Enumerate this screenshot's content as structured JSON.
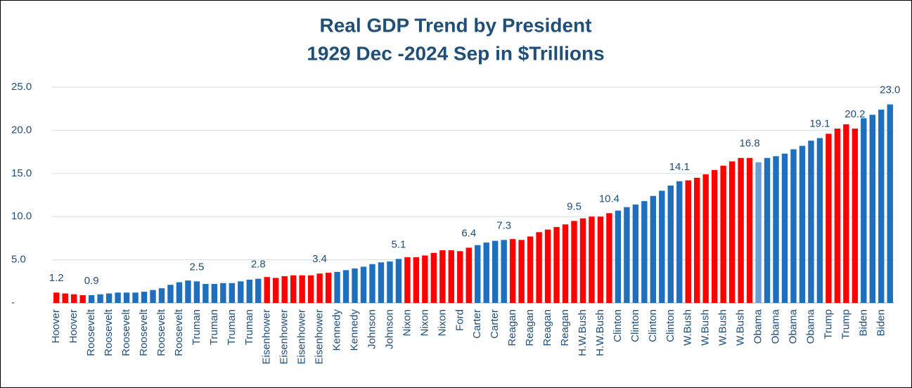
{
  "chart_data": {
    "type": "bar",
    "title": "Real GDP Trend by President",
    "subtitle": "1929 Dec -2024 Sep in $Trillions",
    "categories": [
      "Hoover",
      null,
      "Hoover",
      null,
      "Roosevelt",
      null,
      "Roosevelt",
      null,
      "Roosevelt",
      null,
      "Roosevelt",
      null,
      "Roosevelt",
      null,
      "Roosevelt",
      null,
      "Truman",
      null,
      "Truman",
      null,
      "Truman",
      null,
      "Truman",
      null,
      "Eisenhower",
      null,
      "Eisenhower",
      null,
      "Eisenhower",
      null,
      "Eisenhower",
      null,
      "Kennedy",
      null,
      "Kennedy",
      null,
      "Johnson",
      null,
      "Johnson",
      null,
      "Nixon",
      null,
      "Nixon",
      null,
      "Nixon",
      null,
      "Ford",
      null,
      "Carter",
      null,
      "Carter",
      null,
      "Reagan",
      null,
      "Reagan",
      null,
      "Reagan",
      null,
      "Reagan",
      null,
      "H.W.Bush",
      null,
      "H.W.Bush",
      null,
      "Clinton",
      null,
      "Clinton",
      null,
      "Clinton",
      null,
      "Clinton",
      null,
      "W.Bush",
      null,
      "W.Bush",
      null,
      "W.Bush",
      null,
      "W.Bush",
      null,
      "Obama",
      null,
      "Obama",
      null,
      "Obama",
      null,
      "Obama",
      null,
      "Trump",
      null,
      "Trump",
      null,
      "Biden",
      null,
      "Biden",
      null
    ],
    "values": [
      1.2,
      1.1,
      1.0,
      0.9,
      0.9,
      1.0,
      1.1,
      1.2,
      1.2,
      1.2,
      1.3,
      1.5,
      1.7,
      2.1,
      2.4,
      2.6,
      2.5,
      2.2,
      2.2,
      2.3,
      2.3,
      2.5,
      2.7,
      2.8,
      3.0,
      2.9,
      3.1,
      3.2,
      3.2,
      3.2,
      3.4,
      3.5,
      3.6,
      3.8,
      4.0,
      4.2,
      4.5,
      4.7,
      4.8,
      5.1,
      5.3,
      5.3,
      5.5,
      5.8,
      6.1,
      6.1,
      6.0,
      6.4,
      6.7,
      7.0,
      7.2,
      7.3,
      7.4,
      7.3,
      7.7,
      8.2,
      8.5,
      8.8,
      9.1,
      9.5,
      9.8,
      10.0,
      10.0,
      10.4,
      10.7,
      11.1,
      11.4,
      11.8,
      12.4,
      13.0,
      13.6,
      14.1,
      14.2,
      14.5,
      14.9,
      15.4,
      15.9,
      16.4,
      16.8,
      16.8,
      16.3,
      16.8,
      17.0,
      17.3,
      17.8,
      18.2,
      18.8,
      19.1,
      19.6,
      20.2,
      20.7,
      20.2,
      21.4,
      21.8,
      22.4,
      23.0
    ],
    "value_labels": [
      "1.2",
      null,
      null,
      null,
      "0.9",
      null,
      null,
      null,
      null,
      null,
      null,
      null,
      null,
      null,
      null,
      null,
      "2.5",
      null,
      null,
      null,
      null,
      null,
      null,
      "2.8",
      null,
      null,
      null,
      null,
      null,
      null,
      "3.4",
      null,
      null,
      null,
      null,
      null,
      null,
      null,
      null,
      "5.1",
      null,
      null,
      null,
      null,
      null,
      null,
      null,
      "6.4",
      null,
      null,
      null,
      "7.3",
      null,
      null,
      null,
      null,
      null,
      null,
      null,
      "9.5",
      null,
      null,
      null,
      "10.4",
      null,
      null,
      null,
      null,
      null,
      null,
      null,
      "14.1",
      null,
      null,
      null,
      null,
      null,
      null,
      null,
      "16.8",
      null,
      null,
      null,
      null,
      null,
      null,
      null,
      "19.1",
      null,
      null,
      null,
      "20.2",
      null,
      null,
      null,
      "23.0"
    ],
    "colors": [
      "#ff0000",
      "#ff0000",
      "#ff0000",
      "#ff0000",
      "#1f6fbf",
      "#1f6fbf",
      "#1f6fbf",
      "#1f6fbf",
      "#1f6fbf",
      "#1f6fbf",
      "#1f6fbf",
      "#1f6fbf",
      "#1f6fbf",
      "#1f6fbf",
      "#1f6fbf",
      "#1f6fbf",
      "#1f6fbf",
      "#1f6fbf",
      "#1f6fbf",
      "#1f6fbf",
      "#1f6fbf",
      "#1f6fbf",
      "#1f6fbf",
      "#1f6fbf",
      "#ff0000",
      "#ff0000",
      "#ff0000",
      "#ff0000",
      "#ff0000",
      "#ff0000",
      "#ff0000",
      "#ff0000",
      "#1f6fbf",
      "#1f6fbf",
      "#1f6fbf",
      "#1f6fbf",
      "#1f6fbf",
      "#1f6fbf",
      "#1f6fbf",
      "#1f6fbf",
      "#ff0000",
      "#ff0000",
      "#ff0000",
      "#ff0000",
      "#ff0000",
      "#ff0000",
      "#ff0000",
      "#ff0000",
      "#1f6fbf",
      "#1f6fbf",
      "#1f6fbf",
      "#1f6fbf",
      "#ff0000",
      "#ff0000",
      "#ff0000",
      "#ff0000",
      "#ff0000",
      "#ff0000",
      "#ff0000",
      "#ff0000",
      "#ff0000",
      "#ff0000",
      "#ff0000",
      "#ff0000",
      "#1f6fbf",
      "#1f6fbf",
      "#1f6fbf",
      "#1f6fbf",
      "#1f6fbf",
      "#1f6fbf",
      "#1f6fbf",
      "#1f6fbf",
      "#ff0000",
      "#ff0000",
      "#ff0000",
      "#ff0000",
      "#ff0000",
      "#ff0000",
      "#ff0000",
      "#ff0000",
      "#6a9fd8",
      "#1f6fbf",
      "#1f6fbf",
      "#1f6fbf",
      "#1f6fbf",
      "#1f6fbf",
      "#1f6fbf",
      "#1f6fbf",
      "#ff0000",
      "#ff0000",
      "#ff0000",
      "#ff0000",
      "#1f6fbf",
      "#1f6fbf",
      "#1f6fbf",
      "#1f6fbf"
    ],
    "ylim": [
      0,
      25
    ],
    "yticks": [
      {
        "value": 0,
        "label": "-"
      },
      {
        "value": 5,
        "label": "5.0"
      },
      {
        "value": 10,
        "label": "10.0"
      },
      {
        "value": 15,
        "label": "15.0"
      },
      {
        "value": 20,
        "label": "20.0"
      },
      {
        "value": 25,
        "label": "25.0"
      }
    ],
    "grid": true
  }
}
